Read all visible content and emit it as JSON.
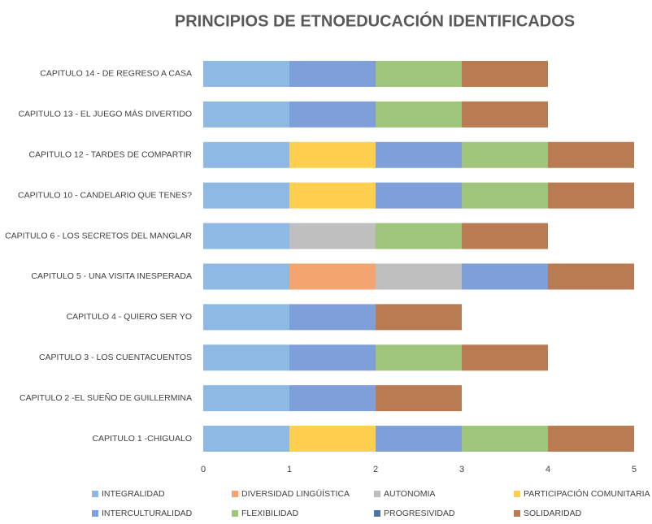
{
  "chart_data": {
    "type": "stacked_barh",
    "title": "PRINCIPIOS  DE ETNOEDUCACIÓN IDENTIFICADOS",
    "categories": [
      "CAPITULO 14 - DE REGRESO A CASA",
      "CAPITULO 13 - EL JUEGO MÁS DIVERTIDO",
      "CAPITULO 12 - TARDES DE COMPARTIR",
      "CAPITULO 10 - CANDELARIO QUE TENES?",
      "CAPITULO 6 - LOS SECRETOS DEL MANGLAR",
      "CAPITULO 5 - UNA VISITA INESPERADA",
      "CAPITULO 4 - QUIERO SER YO",
      "CAPITULO 3 - LOS CUENTACUENTOS",
      "CAPITULO 2 -EL SUEÑO DE GUILLERMINA",
      "CAPITULO 1 -CHIGUALO"
    ],
    "series": [
      {
        "name": "INTEGRALIDAD",
        "color": "#8db9e3",
        "values": [
          1,
          1,
          1,
          1,
          1,
          1,
          1,
          1,
          1,
          1
        ]
      },
      {
        "name": "DIVERSIDAD LINGÜÍSTICA",
        "color": "#f4a46e",
        "values": [
          0,
          0,
          0,
          0,
          0,
          1,
          0,
          0,
          0,
          0
        ]
      },
      {
        "name": "AUTONOMIA",
        "color": "#bfbfbf",
        "values": [
          0,
          0,
          0,
          0,
          1,
          1,
          0,
          0,
          0,
          0
        ]
      },
      {
        "name": "PARTICIPACIÓN COMUNITARIA",
        "color": "#ffd04f",
        "values": [
          0,
          0,
          1,
          1,
          0,
          0,
          0,
          0,
          0,
          1
        ]
      },
      {
        "name": "INTERCULTURALIDAD",
        "color": "#7f9fd8",
        "values": [
          1,
          1,
          1,
          1,
          0,
          1,
          1,
          1,
          1,
          1
        ]
      },
      {
        "name": "FLEXIBILIDAD",
        "color": "#9ec57b",
        "values": [
          1,
          1,
          1,
          1,
          1,
          0,
          0,
          1,
          0,
          1
        ]
      },
      {
        "name": "PROGRESIVIDAD",
        "color": "#4c72a8",
        "values": [
          0,
          0,
          0,
          0,
          0,
          0,
          0,
          0,
          0,
          0
        ]
      },
      {
        "name": "SOLIDARIDAD",
        "color": "#b87b52",
        "values": [
          1,
          1,
          1,
          1,
          1,
          1,
          1,
          1,
          1,
          1
        ]
      }
    ],
    "xlim": [
      0,
      5
    ],
    "xticks": [
      0,
      1,
      2,
      3,
      4,
      5
    ],
    "legend": "bottom"
  }
}
